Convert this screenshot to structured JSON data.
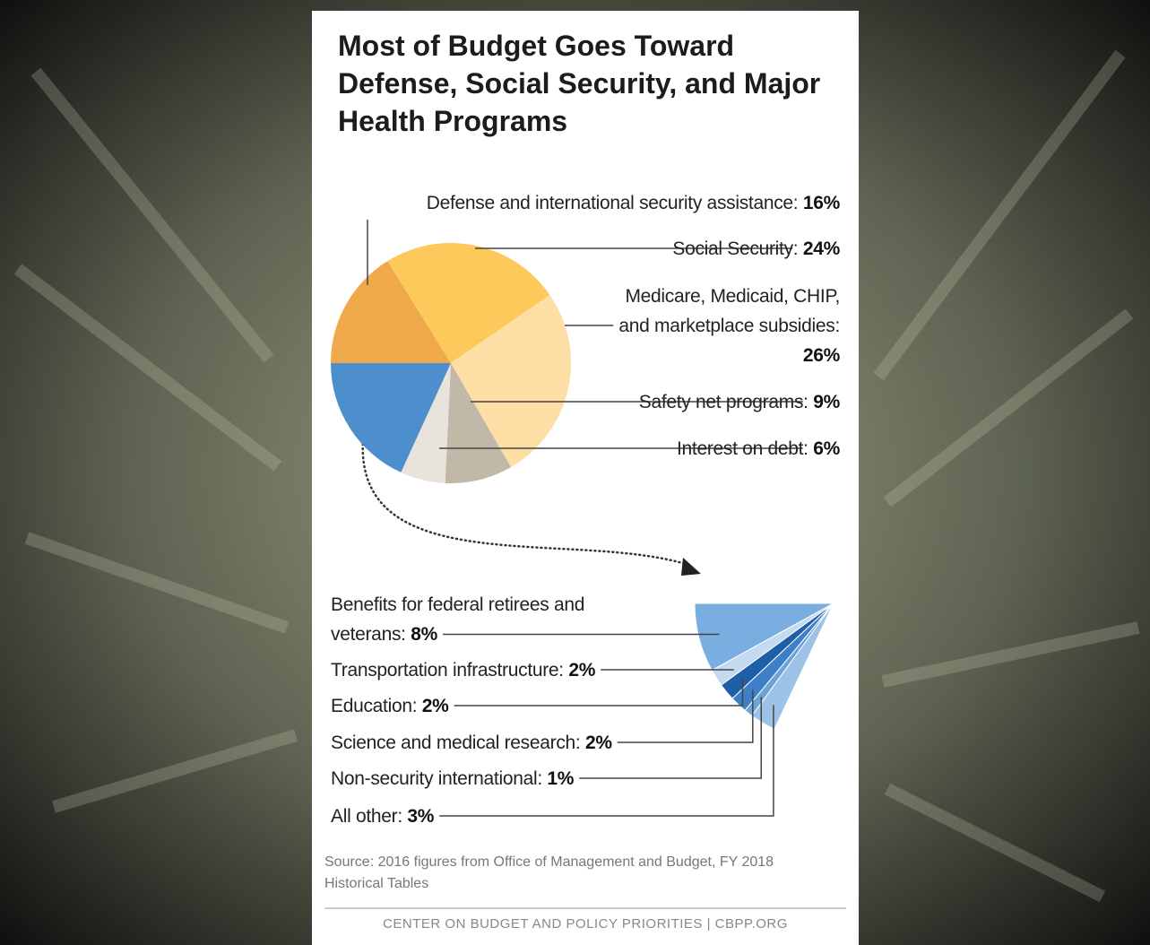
{
  "header": {
    "title": "Most of Budget Goes Toward Defense, Social Security, and Major Health Programs"
  },
  "chart_data": [
    {
      "type": "pie",
      "categories": [
        "Defense and international security assistance:",
        "Social Security:",
        "Medicare, Medicaid, CHIP, and marketplace subsidies:",
        "Safety net programs:",
        "Interest on debt:",
        null
      ],
      "values": [
        16,
        24,
        26,
        9,
        6,
        18
      ],
      "value_labels": [
        "16%",
        "24%",
        "26%",
        "9%",
        "6%",
        null
      ],
      "colors": [
        "#f0a94a",
        "#fdc95a",
        "#fddfa5",
        "#c2b8a8",
        "#e8e4dc",
        "#4d8fcc"
      ]
    },
    {
      "type": "fan",
      "categories": [
        "Benefits for federal retirees and veterans:",
        "Transportation infrastructure:",
        "Education:",
        "Science and medical research:",
        "Non-security international:",
        "All other:"
      ],
      "values": [
        8,
        2,
        2,
        2,
        1,
        3
      ],
      "value_labels": [
        "8%",
        "2%",
        "2%",
        "2%",
        "1%",
        "3%"
      ],
      "colors": [
        "#7aaee0",
        "#c4daf0",
        "#1f5fa8",
        "#3d7fc8",
        "#6ea3d8",
        "#9cc2e8"
      ]
    }
  ],
  "source": "Source: 2016 figures from Office of Management and Budget, FY 2018 Historical Tables",
  "credit": "CENTER ON BUDGET AND POLICY PRIORITIES | CBPP.ORG"
}
